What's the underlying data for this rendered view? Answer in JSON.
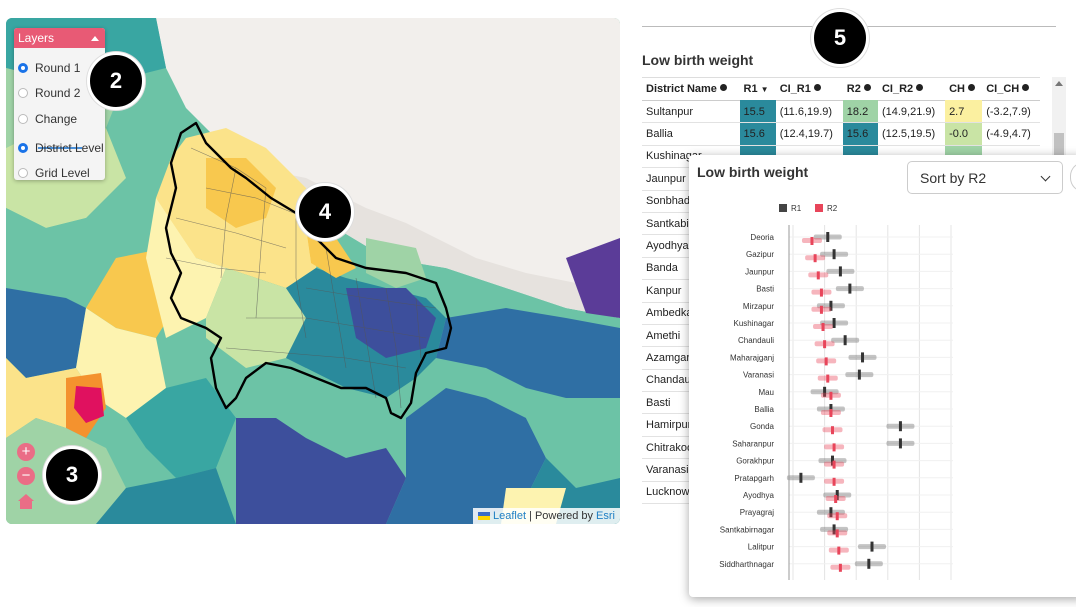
{
  "map": {
    "layers_title": "Layers",
    "round_options": [
      {
        "label": "Round 1",
        "selected": true
      },
      {
        "label": "Round 2",
        "selected": false
      },
      {
        "label": "Change",
        "selected": false
      }
    ],
    "level_options": [
      {
        "label": "District Level",
        "selected": true
      },
      {
        "label": "Grid Level",
        "selected": false
      }
    ],
    "zoom_in": "+",
    "zoom_out": "−",
    "attribution": {
      "leaflet": "Leaflet",
      "sep": "| Powered by",
      "esri": "Esri"
    },
    "palette": [
      "#fdf3b0",
      "#fbe38a",
      "#f8c84e",
      "#c9e4a5",
      "#9fd3a6",
      "#6cc3a6",
      "#39a6a2",
      "#2a8a9c",
      "#2f6fa4",
      "#3d4f9c",
      "#5b3c98",
      "#f4922e",
      "#e8532e",
      "#e0115f"
    ]
  },
  "badges": [
    "2",
    "3",
    "4",
    "5"
  ],
  "table": {
    "title": "Low birth weight",
    "columns": [
      "District Name",
      "R1",
      "CI_R1",
      "R2",
      "CI_R2",
      "CH",
      "CI_CH"
    ],
    "rows": [
      [
        "Sultanpur",
        "15.5",
        "(11.6,19.9)",
        "18.2",
        "(14.9,21.9)",
        "2.7",
        "(-3.2,7.9)"
      ],
      [
        "Ballia",
        "15.6",
        "(12.4,19.7)",
        "15.6",
        "(12.5,19.5)",
        "-0.0",
        "(-4.9,4.7)"
      ],
      [
        "Kushinagar",
        "",
        "",
        "",
        "",
        "",
        ""
      ],
      [
        "Jaunpur",
        "",
        "",
        "",
        "",
        "",
        ""
      ],
      [
        "Sonbhadra",
        "",
        "",
        "",
        "",
        "",
        ""
      ],
      [
        "Santkabir",
        "",
        "",
        "",
        "",
        "",
        ""
      ],
      [
        "Ayodhya",
        "",
        "",
        "",
        "",
        "",
        ""
      ],
      [
        "Banda",
        "",
        "",
        "",
        "",
        "",
        ""
      ],
      [
        "Kanpur",
        "",
        "",
        "",
        "",
        "",
        ""
      ],
      [
        "Ambedkar",
        "",
        "",
        "",
        "",
        "",
        ""
      ],
      [
        "Amethi",
        "",
        "",
        "",
        "",
        "",
        ""
      ],
      [
        "Azamgarh",
        "",
        "",
        "",
        "",
        "",
        ""
      ],
      [
        "Chandauli",
        "",
        "",
        "",
        "",
        "",
        ""
      ],
      [
        "Basti",
        "",
        "",
        "",
        "",
        "",
        ""
      ],
      [
        "Hamirpur",
        "",
        "",
        "",
        "",
        "",
        ""
      ],
      [
        "Chitrakoot",
        "",
        "",
        "",
        "",
        "",
        ""
      ],
      [
        "Varanasi",
        "",
        "",
        "",
        "",
        "",
        ""
      ],
      [
        "Lucknow",
        "",
        "",
        "",
        "",
        "",
        ""
      ]
    ],
    "colors": {
      "r1": "#2a8a9c",
      "r2": "#9fd3a6",
      "ch": "#fbf0a0",
      "r2b": "#2a8a9c"
    }
  },
  "popup": {
    "title": "Low birth weight",
    "sort_label": "Sort by R2",
    "chart_data": {
      "type": "scatter",
      "legend": [
        {
          "name": "R1",
          "color": "#444444"
        },
        {
          "name": "R2",
          "color": "#e8455a"
        }
      ],
      "categories": [
        "Deoria",
        "Gazipur",
        "Jaunpur",
        "Basti",
        "Mirzapur",
        "Kushinagar",
        "Chandauli",
        "Maharajganj",
        "Varanasi",
        "Mau",
        "Ballia",
        "Gonda",
        "Saharanpur",
        "Gorakhpur",
        "Pratapgarh",
        "Ayodhya",
        "Prayagraj",
        "Santkabirnagar",
        "Lalitpur",
        "Siddharthnagar"
      ],
      "r1": [
        0.22,
        0.26,
        0.3,
        0.36,
        0.24,
        0.26,
        0.33,
        0.44,
        0.42,
        0.2,
        0.24,
        0.68,
        0.68,
        0.25,
        0.05,
        0.28,
        0.24,
        0.26,
        0.5,
        0.48
      ],
      "r2": [
        0.12,
        0.14,
        0.16,
        0.18,
        0.18,
        0.19,
        0.2,
        0.21,
        0.22,
        0.24,
        0.24,
        0.25,
        0.26,
        0.26,
        0.26,
        0.27,
        0.28,
        0.28,
        0.29,
        0.3
      ],
      "grid": true,
      "legend_position": "top-left"
    }
  }
}
